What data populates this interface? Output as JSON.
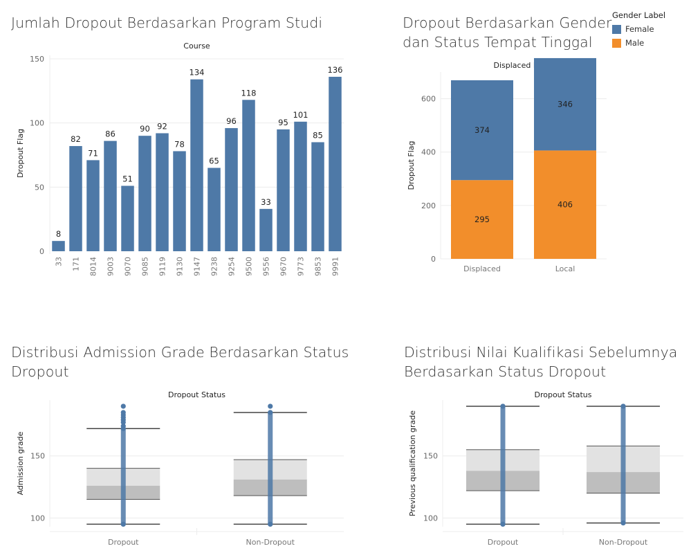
{
  "colors": {
    "bar": "#4e79a7",
    "female": "#4e79a7",
    "male": "#f28e2b",
    "box_upper": "#e2e2e2",
    "box_lower": "#bebebe",
    "grid": "#ececec"
  },
  "titles": {
    "course": "Jumlah Dropout Berdasarkan Program Studi",
    "gender": [
      "Dropout Berdasarkan Gender",
      "dan Status Tempat Tinggal"
    ],
    "admission": [
      "Distribusi Admission Grade Berdasarkan Status",
      "Dropout"
    ],
    "previous": [
      "Distribusi Nilai Kualifikasi Sebelumnya",
      "Berdasarkan Status Dropout"
    ]
  },
  "legend": {
    "title": "Gender Label",
    "items": [
      {
        "label": "Female",
        "color": "#4e79a7"
      },
      {
        "label": "Male",
        "color": "#f28e2b"
      }
    ]
  },
  "chart_data": [
    {
      "id": "course",
      "type": "bar",
      "header": "Course",
      "ylabel": "Dropout Flag",
      "ylim": [
        0,
        150
      ],
      "yticks": [
        0,
        50,
        100,
        150
      ],
      "categories": [
        "33",
        "171",
        "8014",
        "9003",
        "9070",
        "9085",
        "9119",
        "9130",
        "9147",
        "9238",
        "9254",
        "9500",
        "9556",
        "9670",
        "9773",
        "9853",
        "9991"
      ],
      "values": [
        8,
        82,
        71,
        86,
        51,
        90,
        92,
        78,
        134,
        65,
        96,
        118,
        33,
        95,
        101,
        85,
        136
      ],
      "data_labels": true
    },
    {
      "id": "gender",
      "type": "bar",
      "stacked": true,
      "header": "Displaced Label",
      "ylabel": "Dropout Flag",
      "ylim": [
        0,
        700
      ],
      "yticks": [
        0,
        200,
        400,
        600
      ],
      "categories": [
        "Displaced",
        "Local"
      ],
      "series": [
        {
          "name": "Male",
          "values": [
            295,
            406
          ]
        },
        {
          "name": "Female",
          "values": [
            374,
            346
          ]
        }
      ],
      "data_labels": true
    },
    {
      "id": "admission",
      "type": "box",
      "header": "Dropout Status",
      "ylabel": "Admission grade",
      "ylim": [
        93,
        195
      ],
      "yticks": [
        100,
        150
      ],
      "categories": [
        "Dropout",
        "Non-Dropout"
      ],
      "boxes": [
        {
          "min": 95,
          "q1": 115,
          "median": 126,
          "q3": 140,
          "max": 172,
          "outliers": [
            174,
            177,
            179,
            181,
            183,
            185,
            190
          ]
        },
        {
          "min": 95,
          "q1": 118,
          "median": 131,
          "q3": 147,
          "max": 185,
          "outliers": [
            190
          ]
        }
      ]
    },
    {
      "id": "previous",
      "type": "box",
      "header": "Dropout Status",
      "ylabel": "Previous qualification grade",
      "ylim": [
        93,
        195
      ],
      "yticks": [
        100,
        150
      ],
      "categories": [
        "Dropout",
        "Non-Dropout"
      ],
      "boxes": [
        {
          "min": 95,
          "q1": 122,
          "median": 138,
          "q3": 155,
          "max": 190,
          "outliers": []
        },
        {
          "min": 96,
          "q1": 120,
          "median": 137,
          "q3": 158,
          "max": 190,
          "outliers": []
        }
      ]
    }
  ]
}
